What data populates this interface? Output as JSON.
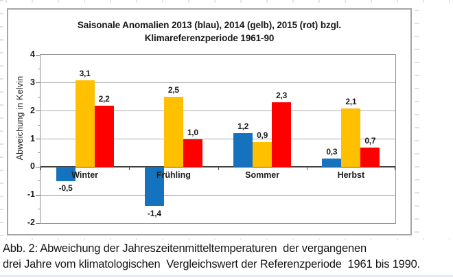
{
  "chart": {
    "title_line1": "Saisonale Anomalien 2013 (blau), 2014 (gelb), 2015 (rot) bzgl.",
    "title_line2": "Klimareferenzperiode 1961-90"
  },
  "chart_data": {
    "type": "bar",
    "title": "Saisonale Anomalien 2013 (blau), 2014 (gelb), 2015 (rot) bzgl. Klimareferenzperiode 1961-90",
    "categories": [
      "Winter",
      "Frühling",
      "Sommer",
      "Herbst"
    ],
    "series": [
      {
        "name": "2013",
        "color": "#1572BE",
        "values": [
          -0.5,
          -1.4,
          1.2,
          0.3
        ]
      },
      {
        "name": "2014",
        "color": "#FFC000",
        "values": [
          3.1,
          2.5,
          0.9,
          2.1
        ]
      },
      {
        "name": "2015",
        "color": "#FE0000",
        "values": [
          2.2,
          1.0,
          2.3,
          0.7
        ]
      }
    ],
    "xlabel": "",
    "ylabel": "Abweichung in Kelvin",
    "ylim": [
      -2,
      4
    ],
    "yticks": [
      4,
      3,
      2,
      1,
      0,
      -1,
      -2
    ],
    "minor_tick_step": 0.5,
    "grid": true,
    "legend_position": "none",
    "decimal_separator": ","
  },
  "caption": {
    "line1": "Abb. 2: Abweichung der Jahreszeitenmitteltemperaturen  der vergangenen",
    "line2": "drei Jahre vom klimatologischen  Vergleichswert der Referenzperiode  1961 bis 1990."
  }
}
